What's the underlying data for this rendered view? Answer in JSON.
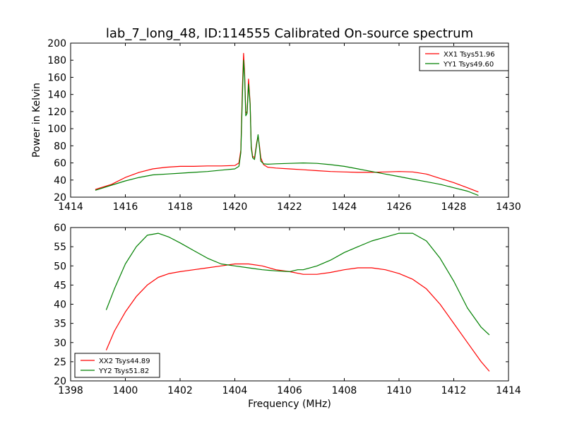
{
  "chart_data": [
    {
      "type": "line",
      "title": "lab_7_long_48, ID:114555 Calibrated On-source spectrum",
      "xlabel": "",
      "ylabel": "Power in Kelvin",
      "xlim": [
        1414,
        1430
      ],
      "ylim": [
        20,
        200
      ],
      "xticks": [
        1414,
        1416,
        1418,
        1420,
        1422,
        1424,
        1426,
        1428,
        1430
      ],
      "yticks": [
        20,
        40,
        60,
        80,
        100,
        120,
        140,
        160,
        180,
        200
      ],
      "legend_position": "top-right",
      "grid": false,
      "series": [
        {
          "name": "XX1 Tsys51.96",
          "color": "#ff0000",
          "x": [
            1414.9,
            1415.5,
            1416.0,
            1416.5,
            1417.0,
            1417.5,
            1418.0,
            1418.5,
            1419.0,
            1419.5,
            1420.0,
            1420.15,
            1420.22,
            1420.28,
            1420.32,
            1420.36,
            1420.4,
            1420.45,
            1420.5,
            1420.56,
            1420.6,
            1420.65,
            1420.72,
            1420.8,
            1420.85,
            1420.9,
            1420.95,
            1421.05,
            1421.2,
            1421.5,
            1422.0,
            1422.5,
            1423.0,
            1423.5,
            1424.0,
            1424.5,
            1425.0,
            1425.5,
            1426.0,
            1426.5,
            1427.0,
            1427.5,
            1428.0,
            1428.5,
            1428.9
          ],
          "y": [
            29,
            35,
            43,
            49,
            53,
            55,
            56,
            56,
            56.5,
            56.5,
            57,
            60,
            75,
            150,
            188,
            165,
            118,
            120,
            158,
            130,
            80,
            68,
            66,
            84,
            91,
            80,
            66,
            58,
            55,
            54,
            53,
            52,
            51,
            50,
            49.5,
            49,
            49,
            49.5,
            50,
            49.5,
            47,
            42,
            37,
            31,
            26
          ]
        },
        {
          "name": "YY1 Tsys49.60",
          "color": "#008000",
          "x": [
            1414.9,
            1415.5,
            1416.0,
            1416.5,
            1417.0,
            1417.5,
            1418.0,
            1418.5,
            1419.0,
            1419.5,
            1420.0,
            1420.15,
            1420.22,
            1420.28,
            1420.32,
            1420.36,
            1420.4,
            1420.45,
            1420.5,
            1420.56,
            1420.6,
            1420.65,
            1420.72,
            1420.8,
            1420.85,
            1420.9,
            1420.95,
            1421.05,
            1421.2,
            1421.5,
            1422.0,
            1422.5,
            1423.0,
            1423.5,
            1424.0,
            1424.5,
            1425.0,
            1425.5,
            1426.0,
            1426.5,
            1427.0,
            1427.5,
            1428.0,
            1428.5,
            1428.9
          ],
          "y": [
            28,
            34,
            39,
            43,
            46,
            47,
            48,
            49,
            50,
            51.5,
            53,
            56,
            72,
            140,
            180,
            160,
            115,
            118,
            152,
            128,
            78,
            66,
            64,
            82,
            93,
            78,
            62,
            59,
            58.5,
            59,
            59.5,
            60,
            59.5,
            58,
            56,
            53,
            50,
            47,
            44,
            41,
            38,
            35,
            31,
            27,
            22
          ]
        }
      ]
    },
    {
      "type": "line",
      "title": "",
      "xlabel": "Frequency (MHz)",
      "ylabel": "",
      "xlim": [
        1398,
        1414
      ],
      "ylim": [
        20,
        60
      ],
      "xticks": [
        1398,
        1400,
        1402,
        1404,
        1406,
        1408,
        1410,
        1412,
        1414
      ],
      "yticks": [
        20,
        25,
        30,
        35,
        40,
        45,
        50,
        55,
        60
      ],
      "legend_position": "bottom-left",
      "grid": false,
      "series": [
        {
          "name": "XX2 Tsys44.89",
          "color": "#ff0000",
          "x": [
            1399.3,
            1399.6,
            1400.0,
            1400.4,
            1400.8,
            1401.2,
            1401.6,
            1402.0,
            1402.5,
            1403.0,
            1403.5,
            1404.0,
            1404.5,
            1405.0,
            1405.5,
            1406.0,
            1406.5,
            1407.0,
            1407.5,
            1408.0,
            1408.5,
            1409.0,
            1409.5,
            1410.0,
            1410.5,
            1411.0,
            1411.5,
            1412.0,
            1412.5,
            1413.0,
            1413.3
          ],
          "y": [
            28,
            33,
            38,
            42,
            45,
            47,
            48,
            48.5,
            49,
            49.5,
            50,
            50.5,
            50.5,
            50,
            49,
            48.5,
            47.8,
            47.8,
            48.3,
            49,
            49.5,
            49.5,
            49,
            48,
            46.5,
            44,
            40,
            35,
            30,
            25,
            22.5
          ]
        },
        {
          "name": "YY2 Tsys51.82",
          "color": "#008000",
          "x": [
            1399.3,
            1399.6,
            1400.0,
            1400.4,
            1400.8,
            1401.2,
            1401.6,
            1402.0,
            1402.5,
            1403.0,
            1403.5,
            1404.0,
            1404.5,
            1405.0,
            1405.5,
            1406.0,
            1406.3,
            1406.5,
            1407.0,
            1407.5,
            1408.0,
            1408.5,
            1409.0,
            1409.5,
            1410.0,
            1410.5,
            1411.0,
            1411.5,
            1412.0,
            1412.5,
            1413.0,
            1413.3
          ],
          "y": [
            38.5,
            44,
            50.5,
            55,
            58,
            58.5,
            57.5,
            56,
            54,
            52,
            50.5,
            50,
            49.5,
            49,
            48.7,
            48.5,
            49,
            49,
            50,
            51.5,
            53.5,
            55,
            56.5,
            57.5,
            58.5,
            58.5,
            56.5,
            52,
            46,
            39,
            34,
            32
          ]
        }
      ]
    }
  ]
}
